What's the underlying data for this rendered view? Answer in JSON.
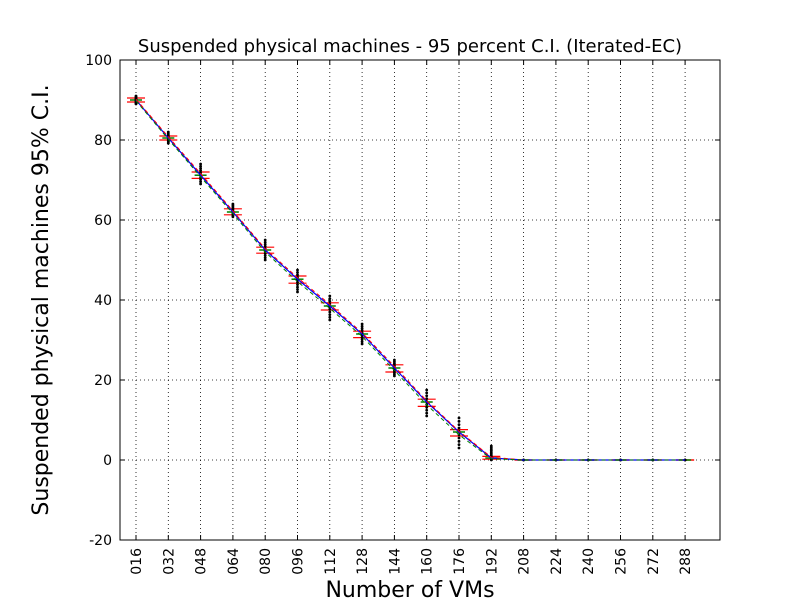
{
  "chart_data": {
    "type": "line",
    "title": "Suspended physical machines - 95 percent C.I. (Iterated-EC)",
    "xlabel": "Number of VMs",
    "ylabel": "Suspended physical machines 95% C.I.",
    "categories": [
      "016",
      "032",
      "048",
      "064",
      "080",
      "096",
      "112",
      "128",
      "144",
      "160",
      "176",
      "192",
      "208",
      "224",
      "240",
      "256",
      "272",
      "288"
    ],
    "ylim": [
      -20,
      100
    ],
    "yticks": [
      -20,
      0,
      20,
      40,
      60,
      80,
      100
    ],
    "grid": true,
    "series": [
      {
        "color": "#0000ff",
        "style": "solid",
        "values": [
          90.0,
          80.5,
          71.2,
          62.0,
          52.5,
          45.2,
          38.5,
          31.5,
          23.0,
          14.5,
          7.0,
          0.5,
          0,
          0,
          0,
          0,
          0,
          0
        ]
      },
      {
        "color": "#ff0000",
        "style": "dashed",
        "values": [
          90.2,
          80.8,
          71.6,
          62.3,
          52.8,
          45.6,
          38.9,
          31.8,
          23.4,
          14.8,
          7.2,
          0.7,
          0,
          0,
          0,
          0,
          0,
          0
        ]
      },
      {
        "color": "#008000",
        "style": "dashed",
        "values": [
          89.8,
          80.2,
          70.8,
          61.6,
          52.0,
          44.6,
          37.9,
          30.9,
          22.4,
          13.8,
          6.3,
          0.3,
          0,
          0,
          0,
          0,
          0,
          0
        ]
      }
    ],
    "ci_upper": [
      90.5,
      81.0,
      72.0,
      62.8,
      53.2,
      46.0,
      39.3,
      32.2,
      23.8,
      15.2,
      7.6,
      0.9,
      0,
      0,
      0,
      0,
      0,
      0
    ],
    "ci_lower": [
      89.5,
      80.0,
      70.4,
      61.3,
      51.7,
      44.2,
      37.5,
      30.6,
      22.0,
      13.4,
      6.0,
      0.2,
      0,
      0,
      0,
      0,
      0,
      0
    ],
    "scatter_min": [
      89.0,
      79.2,
      69.0,
      60.8,
      50.0,
      42.0,
      35.0,
      29.0,
      21.0,
      11.0,
      3.0,
      0,
      0,
      0,
      0,
      0,
      0,
      0
    ],
    "scatter_max": [
      91.0,
      82.0,
      74.0,
      64.0,
      55.0,
      47.5,
      41.0,
      34.0,
      25.0,
      17.5,
      10.5,
      3.5,
      0,
      0,
      0,
      0,
      0,
      0
    ]
  }
}
